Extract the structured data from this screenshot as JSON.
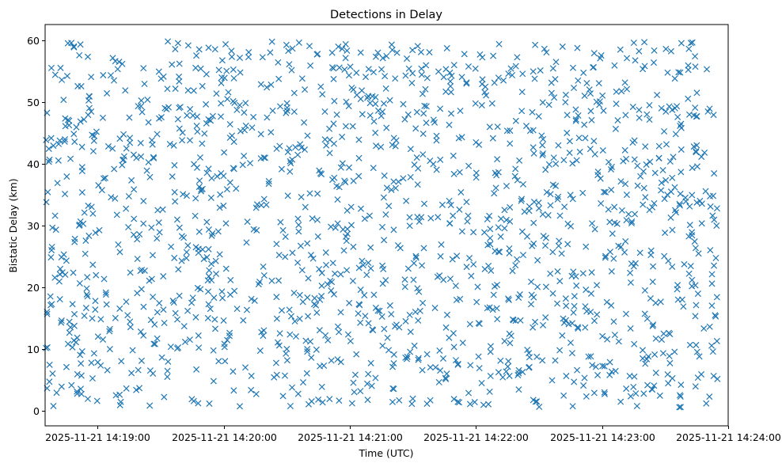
{
  "chart_data": {
    "type": "scatter",
    "title": "Detections in Delay",
    "xlabel": "Time (UTC)",
    "ylabel": "Bistatic Delay (km)",
    "marker": "x",
    "marker_color": "#1f77b4",
    "grid": false,
    "x_range": [
      "2025-11-21 14:18:35",
      "2025-11-21 14:24:00"
    ],
    "ylim": [
      -2.5,
      62.5
    ],
    "x_ticks": [
      "2025-11-21 14:19:00",
      "2025-11-21 14:20:00",
      "2025-11-21 14:21:00",
      "2025-11-21 14:22:00",
      "2025-11-21 14:23:00",
      "2025-11-21 14:24:00"
    ],
    "y_ticks": [
      0,
      10,
      20,
      30,
      40,
      50,
      60
    ],
    "data_time_start": "2025-11-21 14:18:35",
    "data_time_end": "2025-11-21 14:23:55",
    "delay_range": [
      0.5,
      59.9
    ],
    "point_count": 1600,
    "random_seed": 20251121
  }
}
